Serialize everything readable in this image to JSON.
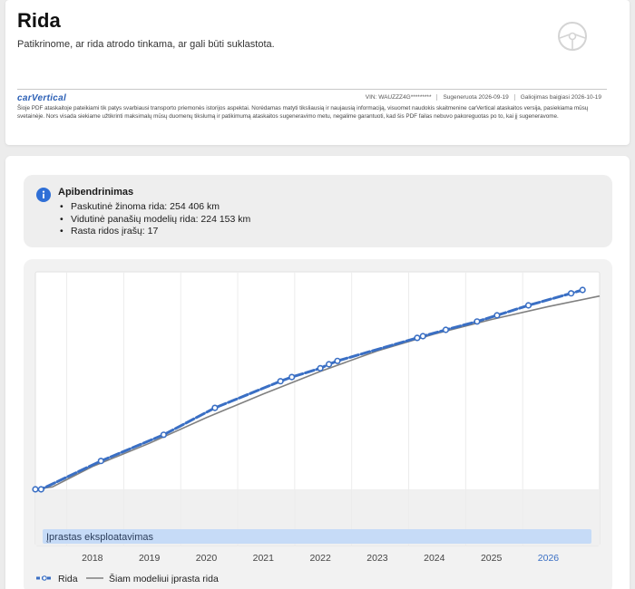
{
  "header": {
    "title": "Rida",
    "subtitle": "Patikrinome, ar rida atrodo tinkama, ar gali būti suklastota.",
    "brand": "carVertical",
    "vin": "VIN: WAUZZZ4G*********",
    "generated": "Sugeneruota 2026-09-19",
    "valid_until": "Galiojimas baigiasi 2026-10-19",
    "disclaimer": "Šioje PDF ataskaitoje pateikiami tik patys svarbiausi transporto priemonės istorijos aspektai. Norėdamas matyti tiksliausią ir naujausią informaciją, visuomet naudokis skaitmenine carVertical ataskaitos versija, pasiekiama mūsų svetainėje. Nors visada siekiame užtikrinti maksimalų mūsų duomenų tikslumą ir patikimumą ataskaitos sugeneravimo metu, negalime garantuoti, kad šis PDF failas nebuvo pakoreguotas po to, kai jį sugeneravome.",
    "wheel_icon": "steering-wheel-icon"
  },
  "summary": {
    "icon": "info-icon",
    "title": "Apibendrinimas",
    "items": [
      "Paskutinė žinoma rida: 254 406 km",
      "Vidutinė panašių modelių rida: 224 153 km",
      "Rasta ridos įrašų: 17"
    ]
  },
  "chart_data": {
    "type": "line",
    "x_ticks": [
      "2018",
      "2019",
      "2020",
      "2021",
      "2022",
      "2023",
      "2024",
      "2025",
      "2026"
    ],
    "band_label": "Įprastas eksploatavimas",
    "series": [
      {
        "name": "Rida",
        "color": "#3a6fc4",
        "style": "dashed-with-markers",
        "points": [
          [
            2017.0,
            0.0
          ],
          [
            2017.1,
            0.0
          ],
          [
            2018.15,
            0.116
          ],
          [
            2019.25,
            0.223
          ],
          [
            2020.15,
            0.333
          ],
          [
            2021.3,
            0.442
          ],
          [
            2021.5,
            0.459
          ],
          [
            2022.0,
            0.495
          ],
          [
            2022.15,
            0.511
          ],
          [
            2022.3,
            0.525
          ],
          [
            2023.7,
            0.619
          ],
          [
            2023.8,
            0.626
          ],
          [
            2024.2,
            0.652
          ],
          [
            2024.75,
            0.686
          ],
          [
            2025.1,
            0.711
          ],
          [
            2025.65,
            0.752
          ],
          [
            2026.4,
            0.801
          ],
          [
            2026.6,
            0.815
          ]
        ]
      },
      {
        "name": "Šiam modeliui įprasta rida",
        "color": "#808080",
        "style": "solid",
        "points": [
          [
            2017.0,
            0.0
          ],
          [
            2017.3,
            0.01
          ],
          [
            2018.0,
            0.093
          ],
          [
            2019.0,
            0.188
          ],
          [
            2020.0,
            0.293
          ],
          [
            2021.0,
            0.39
          ],
          [
            2022.0,
            0.482
          ],
          [
            2023.0,
            0.566
          ],
          [
            2024.0,
            0.635
          ],
          [
            2025.0,
            0.694
          ],
          [
            2026.0,
            0.747
          ],
          [
            2026.9,
            0.79
          ]
        ]
      }
    ],
    "legend_position": "bottom-left",
    "grid": true
  }
}
